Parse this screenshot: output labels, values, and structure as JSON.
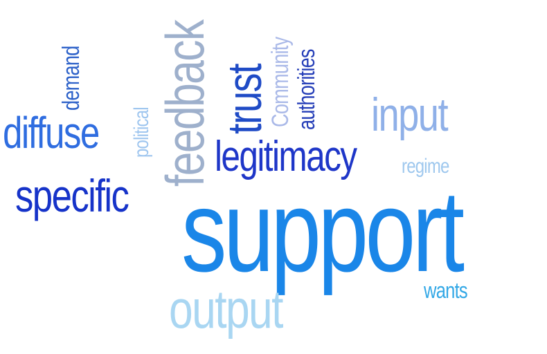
{
  "words": [
    {
      "key": "support",
      "text": "support",
      "color": "#1a86e8"
    },
    {
      "key": "legitimacy",
      "text": "legitimacy",
      "color": "#1e36c8"
    },
    {
      "key": "diffuse",
      "text": "diffuse",
      "color": "#2f6de0"
    },
    {
      "key": "specific",
      "text": "specific",
      "color": "#1633c9"
    },
    {
      "key": "input",
      "text": "input",
      "color": "#8fb0e8"
    },
    {
      "key": "regime",
      "text": "regime",
      "color": "#9fc8ee"
    },
    {
      "key": "output",
      "text": "output",
      "color": "#a9d6f2"
    },
    {
      "key": "wants",
      "text": "wants",
      "color": "#33a8e6"
    },
    {
      "key": "feedback",
      "text": "feedback",
      "color": "#9eb0cc"
    },
    {
      "key": "trust",
      "text": "trust",
      "color": "#1f4bc6"
    },
    {
      "key": "community",
      "text": "Community",
      "color": "#aab9e8"
    },
    {
      "key": "authorities",
      "text": "authorities",
      "color": "#263fb8"
    },
    {
      "key": "demand",
      "text": "demand",
      "color": "#2e62c9"
    },
    {
      "key": "political",
      "text": "political",
      "color": "#9fc6ef"
    }
  ]
}
